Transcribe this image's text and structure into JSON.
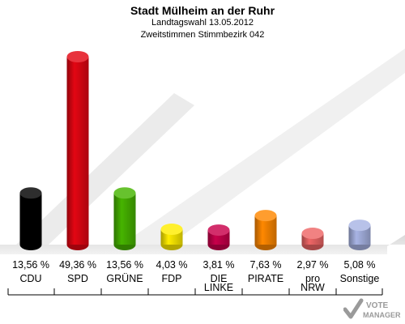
{
  "header": {
    "title": "Stadt Mülheim an der Ruhr",
    "subtitle": "Landtagswahl 13.05.2012",
    "subsubtitle": "Zweitstimmen Stimmbezirk 042"
  },
  "chart_data": {
    "type": "bar",
    "title": "Stadt Mülheim an der Ruhr",
    "subtitle": "Landtagswahl 13.05.2012 · Zweitstimmen Stimmbezirk 042",
    "categories": [
      "CDU",
      "SPD",
      "GRÜNE",
      "FDP",
      "DIE LINKE",
      "PIRATE",
      "pro NRW",
      "Sonstige"
    ],
    "category_lines": [
      [
        "CDU"
      ],
      [
        "SPD"
      ],
      [
        "GRÜNE"
      ],
      [
        "FDP"
      ],
      [
        "DIE",
        "LINKE"
      ],
      [
        "PIRATE"
      ],
      [
        "pro",
        "NRW"
      ],
      [
        "Sonstige"
      ]
    ],
    "values": [
      13.56,
      49.36,
      13.56,
      4.03,
      3.81,
      7.63,
      2.97,
      5.08
    ],
    "value_labels": [
      "13,56 %",
      "49,36 %",
      "13,56 %",
      "4,03 %",
      "3,81 %",
      "7,63 %",
      "2,97 %",
      "5,08 %"
    ],
    "colors": [
      "#000000",
      "#e30613",
      "#46b400",
      "#ffed00",
      "#c8004b",
      "#ff8800",
      "#ee6666",
      "#a8b4e4"
    ],
    "unit": "%",
    "ylim": [
      0,
      50
    ],
    "grid": false,
    "legend": "none"
  },
  "watermark": {
    "text": "VOTE MANAGER"
  }
}
